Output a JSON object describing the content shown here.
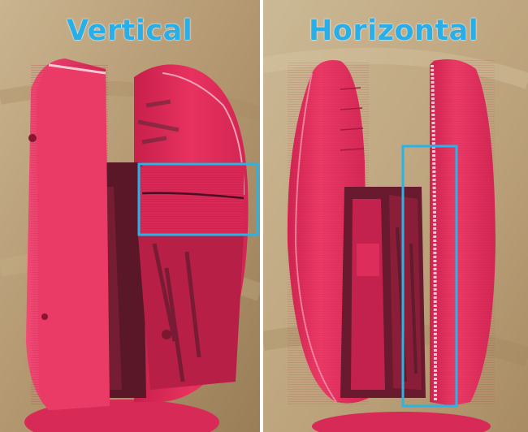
{
  "figure": {
    "left_panel": {
      "label": "Vertical"
    },
    "right_panel": {
      "label": "Horizontal"
    },
    "colors": {
      "highlight_box": "#29b4e6",
      "label_text": "#2aaee8",
      "part_red": "#e3295a",
      "background_wood": "#b59a72"
    }
  }
}
